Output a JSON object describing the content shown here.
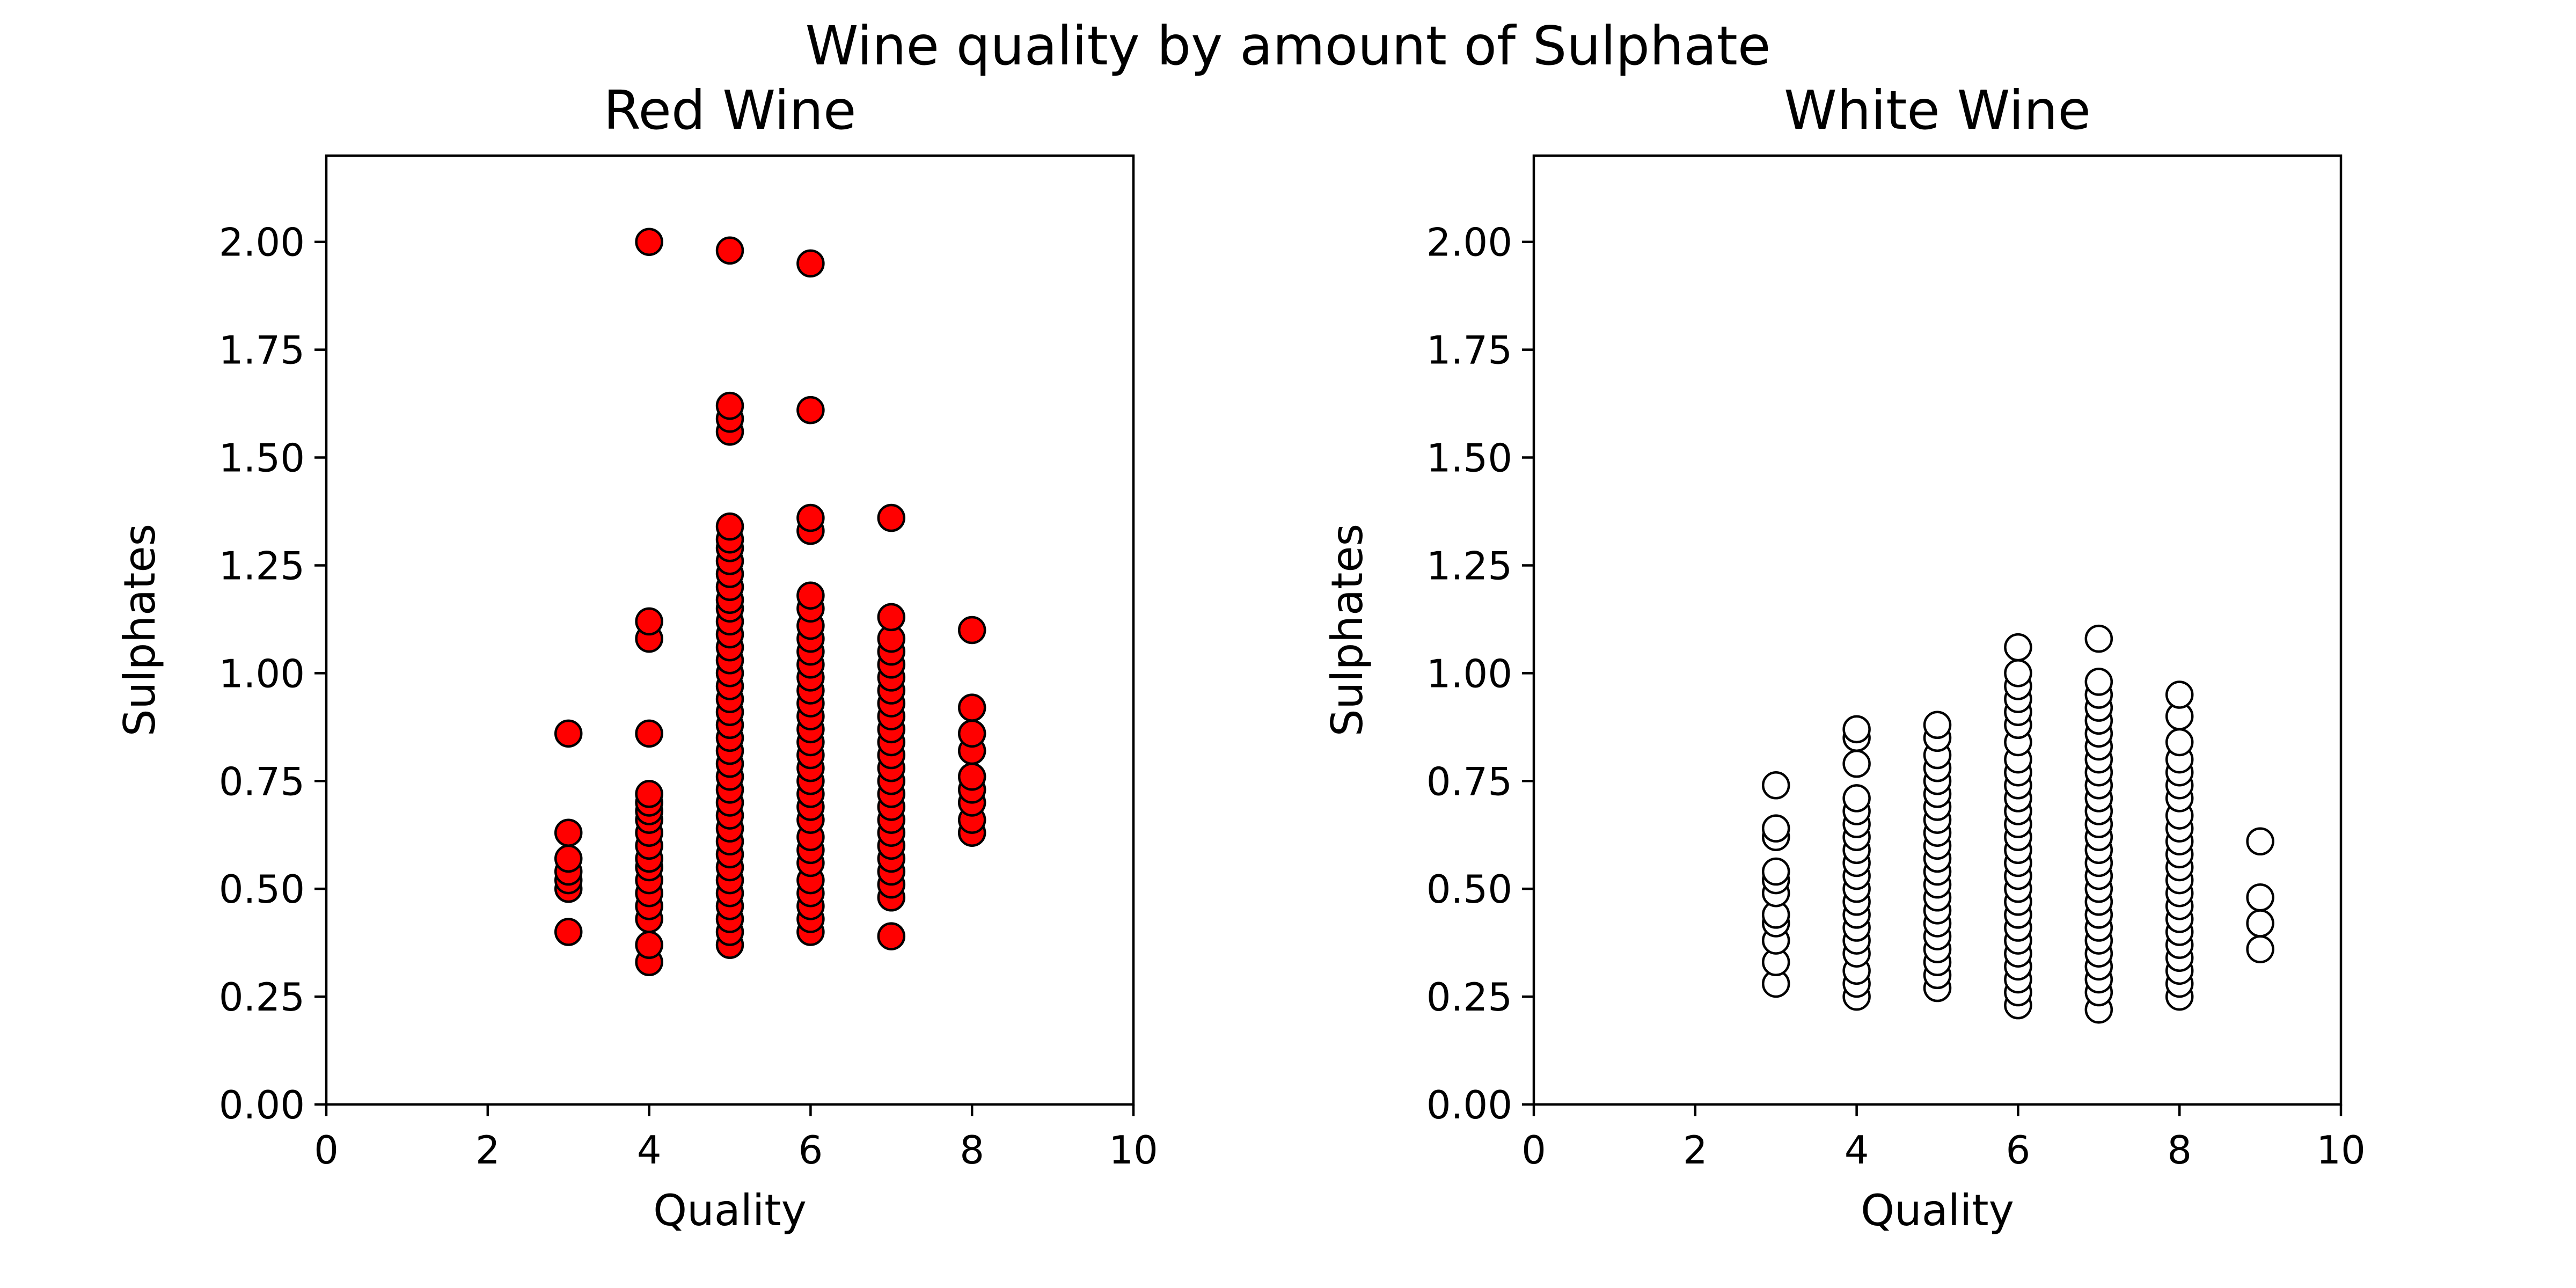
{
  "figure": {
    "suptitle": "Wine quality by amount of Sulphate"
  },
  "chart_data": [
    {
      "type": "scatter",
      "title": "Red Wine",
      "xlabel": "Quality",
      "ylabel": "Sulphates",
      "xlim": [
        0,
        10
      ],
      "ylim": [
        0,
        2.2
      ],
      "xticks": [
        0,
        2,
        4,
        6,
        8,
        10
      ],
      "xtick_labels": [
        "0",
        "2",
        "4",
        "6",
        "8",
        "10"
      ],
      "yticks": [
        0,
        0.25,
        0.5,
        0.75,
        1.0,
        1.25,
        1.5,
        1.75,
        2.0
      ],
      "ytick_labels": [
        "0.00",
        "0.25",
        "0.50",
        "0.75",
        "1.00",
        "1.25",
        "1.50",
        "1.75",
        "2.00"
      ],
      "marker_fill": "#ff0000",
      "marker_edge": "#000000",
      "grid": false,
      "points": [
        {
          "x": 3,
          "y": 0.4
        },
        {
          "x": 3,
          "y": 0.5
        },
        {
          "x": 3,
          "y": 0.52
        },
        {
          "x": 3,
          "y": 0.54
        },
        {
          "x": 3,
          "y": 0.57
        },
        {
          "x": 3,
          "y": 0.63
        },
        {
          "x": 3,
          "y": 0.86
        },
        {
          "x": 4,
          "y": 0.33
        },
        {
          "x": 4,
          "y": 0.37
        },
        {
          "x": 4,
          "y": 0.43
        },
        {
          "x": 4,
          "y": 0.46
        },
        {
          "x": 4,
          "y": 0.49
        },
        {
          "x": 4,
          "y": 0.52
        },
        {
          "x": 4,
          "y": 0.55
        },
        {
          "x": 4,
          "y": 0.57
        },
        {
          "x": 4,
          "y": 0.6
        },
        {
          "x": 4,
          "y": 0.63
        },
        {
          "x": 4,
          "y": 0.66
        },
        {
          "x": 4,
          "y": 0.68
        },
        {
          "x": 4,
          "y": 0.7
        },
        {
          "x": 4,
          "y": 0.72
        },
        {
          "x": 4,
          "y": 0.86
        },
        {
          "x": 4,
          "y": 1.08
        },
        {
          "x": 4,
          "y": 1.12
        },
        {
          "x": 4,
          "y": 2.0
        },
        {
          "x": 5,
          "y": 0.37
        },
        {
          "x": 5,
          "y": 0.4
        },
        {
          "x": 5,
          "y": 0.43
        },
        {
          "x": 5,
          "y": 0.46
        },
        {
          "x": 5,
          "y": 0.49
        },
        {
          "x": 5,
          "y": 0.52
        },
        {
          "x": 5,
          "y": 0.55
        },
        {
          "x": 5,
          "y": 0.58
        },
        {
          "x": 5,
          "y": 0.61
        },
        {
          "x": 5,
          "y": 0.64
        },
        {
          "x": 5,
          "y": 0.67
        },
        {
          "x": 5,
          "y": 0.7
        },
        {
          "x": 5,
          "y": 0.73
        },
        {
          "x": 5,
          "y": 0.76
        },
        {
          "x": 5,
          "y": 0.79
        },
        {
          "x": 5,
          "y": 0.82
        },
        {
          "x": 5,
          "y": 0.85
        },
        {
          "x": 5,
          "y": 0.88
        },
        {
          "x": 5,
          "y": 0.91
        },
        {
          "x": 5,
          "y": 0.94
        },
        {
          "x": 5,
          "y": 0.97
        },
        {
          "x": 5,
          "y": 1.0
        },
        {
          "x": 5,
          "y": 1.03
        },
        {
          "x": 5,
          "y": 1.06
        },
        {
          "x": 5,
          "y": 1.09
        },
        {
          "x": 5,
          "y": 1.12
        },
        {
          "x": 5,
          "y": 1.15
        },
        {
          "x": 5,
          "y": 1.17
        },
        {
          "x": 5,
          "y": 1.2
        },
        {
          "x": 5,
          "y": 1.23
        },
        {
          "x": 5,
          "y": 1.26
        },
        {
          "x": 5,
          "y": 1.29
        },
        {
          "x": 5,
          "y": 1.31
        },
        {
          "x": 5,
          "y": 1.34
        },
        {
          "x": 5,
          "y": 1.56
        },
        {
          "x": 5,
          "y": 1.59
        },
        {
          "x": 5,
          "y": 1.62
        },
        {
          "x": 5,
          "y": 1.98
        },
        {
          "x": 6,
          "y": 0.4
        },
        {
          "x": 6,
          "y": 0.43
        },
        {
          "x": 6,
          "y": 0.46
        },
        {
          "x": 6,
          "y": 0.49
        },
        {
          "x": 6,
          "y": 0.52
        },
        {
          "x": 6,
          "y": 0.56
        },
        {
          "x": 6,
          "y": 0.59
        },
        {
          "x": 6,
          "y": 0.62
        },
        {
          "x": 6,
          "y": 0.66
        },
        {
          "x": 6,
          "y": 0.69
        },
        {
          "x": 6,
          "y": 0.72
        },
        {
          "x": 6,
          "y": 0.75
        },
        {
          "x": 6,
          "y": 0.78
        },
        {
          "x": 6,
          "y": 0.81
        },
        {
          "x": 6,
          "y": 0.84
        },
        {
          "x": 6,
          "y": 0.87
        },
        {
          "x": 6,
          "y": 0.9
        },
        {
          "x": 6,
          "y": 0.93
        },
        {
          "x": 6,
          "y": 0.96
        },
        {
          "x": 6,
          "y": 0.99
        },
        {
          "x": 6,
          "y": 1.02
        },
        {
          "x": 6,
          "y": 1.05
        },
        {
          "x": 6,
          "y": 1.08
        },
        {
          "x": 6,
          "y": 1.11
        },
        {
          "x": 6,
          "y": 1.15
        },
        {
          "x": 6,
          "y": 1.18
        },
        {
          "x": 6,
          "y": 1.33
        },
        {
          "x": 6,
          "y": 1.36
        },
        {
          "x": 6,
          "y": 1.61
        },
        {
          "x": 6,
          "y": 1.95
        },
        {
          "x": 7,
          "y": 0.39
        },
        {
          "x": 7,
          "y": 0.48
        },
        {
          "x": 7,
          "y": 0.51
        },
        {
          "x": 7,
          "y": 0.54
        },
        {
          "x": 7,
          "y": 0.57
        },
        {
          "x": 7,
          "y": 0.6
        },
        {
          "x": 7,
          "y": 0.63
        },
        {
          "x": 7,
          "y": 0.66
        },
        {
          "x": 7,
          "y": 0.69
        },
        {
          "x": 7,
          "y": 0.72
        },
        {
          "x": 7,
          "y": 0.75
        },
        {
          "x": 7,
          "y": 0.78
        },
        {
          "x": 7,
          "y": 0.81
        },
        {
          "x": 7,
          "y": 0.84
        },
        {
          "x": 7,
          "y": 0.87
        },
        {
          "x": 7,
          "y": 0.9
        },
        {
          "x": 7,
          "y": 0.93
        },
        {
          "x": 7,
          "y": 0.96
        },
        {
          "x": 7,
          "y": 0.99
        },
        {
          "x": 7,
          "y": 1.02
        },
        {
          "x": 7,
          "y": 1.05
        },
        {
          "x": 7,
          "y": 1.08
        },
        {
          "x": 7,
          "y": 1.13
        },
        {
          "x": 7,
          "y": 1.36
        },
        {
          "x": 8,
          "y": 0.63
        },
        {
          "x": 8,
          "y": 0.66
        },
        {
          "x": 8,
          "y": 0.7
        },
        {
          "x": 8,
          "y": 0.73
        },
        {
          "x": 8,
          "y": 0.76
        },
        {
          "x": 8,
          "y": 0.82
        },
        {
          "x": 8,
          "y": 0.86
        },
        {
          "x": 8,
          "y": 0.92
        },
        {
          "x": 8,
          "y": 1.1
        }
      ]
    },
    {
      "type": "scatter",
      "title": "White Wine",
      "xlabel": "Quality",
      "ylabel": "Sulphates",
      "xlim": [
        0,
        10
      ],
      "ylim": [
        0,
        2.2
      ],
      "xticks": [
        0,
        2,
        4,
        6,
        8,
        10
      ],
      "xtick_labels": [
        "0",
        "2",
        "4",
        "6",
        "8",
        "10"
      ],
      "yticks": [
        0,
        0.25,
        0.5,
        0.75,
        1.0,
        1.25,
        1.5,
        1.75,
        2.0
      ],
      "ytick_labels": [
        "0.00",
        "0.25",
        "0.50",
        "0.75",
        "1.00",
        "1.25",
        "1.50",
        "1.75",
        "2.00"
      ],
      "marker_fill": "#ffffff",
      "marker_edge": "#000000",
      "grid": false,
      "points": [
        {
          "x": 3,
          "y": 0.28
        },
        {
          "x": 3,
          "y": 0.33
        },
        {
          "x": 3,
          "y": 0.38
        },
        {
          "x": 3,
          "y": 0.42
        },
        {
          "x": 3,
          "y": 0.44
        },
        {
          "x": 3,
          "y": 0.49
        },
        {
          "x": 3,
          "y": 0.52
        },
        {
          "x": 3,
          "y": 0.54
        },
        {
          "x": 3,
          "y": 0.62
        },
        {
          "x": 3,
          "y": 0.64
        },
        {
          "x": 3,
          "y": 0.74
        },
        {
          "x": 4,
          "y": 0.25
        },
        {
          "x": 4,
          "y": 0.28
        },
        {
          "x": 4,
          "y": 0.31
        },
        {
          "x": 4,
          "y": 0.35
        },
        {
          "x": 4,
          "y": 0.38
        },
        {
          "x": 4,
          "y": 0.41
        },
        {
          "x": 4,
          "y": 0.44
        },
        {
          "x": 4,
          "y": 0.47
        },
        {
          "x": 4,
          "y": 0.5
        },
        {
          "x": 4,
          "y": 0.53
        },
        {
          "x": 4,
          "y": 0.56
        },
        {
          "x": 4,
          "y": 0.59
        },
        {
          "x": 4,
          "y": 0.62
        },
        {
          "x": 4,
          "y": 0.65
        },
        {
          "x": 4,
          "y": 0.68
        },
        {
          "x": 4,
          "y": 0.71
        },
        {
          "x": 4,
          "y": 0.79
        },
        {
          "x": 4,
          "y": 0.85
        },
        {
          "x": 4,
          "y": 0.87
        },
        {
          "x": 5,
          "y": 0.27
        },
        {
          "x": 5,
          "y": 0.3
        },
        {
          "x": 5,
          "y": 0.33
        },
        {
          "x": 5,
          "y": 0.36
        },
        {
          "x": 5,
          "y": 0.39
        },
        {
          "x": 5,
          "y": 0.42
        },
        {
          "x": 5,
          "y": 0.45
        },
        {
          "x": 5,
          "y": 0.48
        },
        {
          "x": 5,
          "y": 0.51
        },
        {
          "x": 5,
          "y": 0.54
        },
        {
          "x": 5,
          "y": 0.57
        },
        {
          "x": 5,
          "y": 0.6
        },
        {
          "x": 5,
          "y": 0.63
        },
        {
          "x": 5,
          "y": 0.66
        },
        {
          "x": 5,
          "y": 0.69
        },
        {
          "x": 5,
          "y": 0.72
        },
        {
          "x": 5,
          "y": 0.75
        },
        {
          "x": 5,
          "y": 0.78
        },
        {
          "x": 5,
          "y": 0.81
        },
        {
          "x": 5,
          "y": 0.85
        },
        {
          "x": 5,
          "y": 0.88
        },
        {
          "x": 6,
          "y": 0.23
        },
        {
          "x": 6,
          "y": 0.26
        },
        {
          "x": 6,
          "y": 0.29
        },
        {
          "x": 6,
          "y": 0.32
        },
        {
          "x": 6,
          "y": 0.35
        },
        {
          "x": 6,
          "y": 0.38
        },
        {
          "x": 6,
          "y": 0.41
        },
        {
          "x": 6,
          "y": 0.44
        },
        {
          "x": 6,
          "y": 0.47
        },
        {
          "x": 6,
          "y": 0.5
        },
        {
          "x": 6,
          "y": 0.53
        },
        {
          "x": 6,
          "y": 0.56
        },
        {
          "x": 6,
          "y": 0.59
        },
        {
          "x": 6,
          "y": 0.62
        },
        {
          "x": 6,
          "y": 0.65
        },
        {
          "x": 6,
          "y": 0.68
        },
        {
          "x": 6,
          "y": 0.71
        },
        {
          "x": 6,
          "y": 0.74
        },
        {
          "x": 6,
          "y": 0.77
        },
        {
          "x": 6,
          "y": 0.8
        },
        {
          "x": 6,
          "y": 0.84
        },
        {
          "x": 6,
          "y": 0.88
        },
        {
          "x": 6,
          "y": 0.91
        },
        {
          "x": 6,
          "y": 0.94
        },
        {
          "x": 6,
          "y": 0.97
        },
        {
          "x": 6,
          "y": 1.0
        },
        {
          "x": 6,
          "y": 1.06
        },
        {
          "x": 7,
          "y": 0.22
        },
        {
          "x": 7,
          "y": 0.26
        },
        {
          "x": 7,
          "y": 0.29
        },
        {
          "x": 7,
          "y": 0.32
        },
        {
          "x": 7,
          "y": 0.35
        },
        {
          "x": 7,
          "y": 0.38
        },
        {
          "x": 7,
          "y": 0.41
        },
        {
          "x": 7,
          "y": 0.44
        },
        {
          "x": 7,
          "y": 0.47
        },
        {
          "x": 7,
          "y": 0.5
        },
        {
          "x": 7,
          "y": 0.53
        },
        {
          "x": 7,
          "y": 0.56
        },
        {
          "x": 7,
          "y": 0.59
        },
        {
          "x": 7,
          "y": 0.62
        },
        {
          "x": 7,
          "y": 0.65
        },
        {
          "x": 7,
          "y": 0.68
        },
        {
          "x": 7,
          "y": 0.71
        },
        {
          "x": 7,
          "y": 0.74
        },
        {
          "x": 7,
          "y": 0.77
        },
        {
          "x": 7,
          "y": 0.8
        },
        {
          "x": 7,
          "y": 0.83
        },
        {
          "x": 7,
          "y": 0.86
        },
        {
          "x": 7,
          "y": 0.89
        },
        {
          "x": 7,
          "y": 0.92
        },
        {
          "x": 7,
          "y": 0.95
        },
        {
          "x": 7,
          "y": 0.98
        },
        {
          "x": 7,
          "y": 1.08
        },
        {
          "x": 8,
          "y": 0.25
        },
        {
          "x": 8,
          "y": 0.28
        },
        {
          "x": 8,
          "y": 0.31
        },
        {
          "x": 8,
          "y": 0.34
        },
        {
          "x": 8,
          "y": 0.37
        },
        {
          "x": 8,
          "y": 0.4
        },
        {
          "x": 8,
          "y": 0.43
        },
        {
          "x": 8,
          "y": 0.46
        },
        {
          "x": 8,
          "y": 0.49
        },
        {
          "x": 8,
          "y": 0.52
        },
        {
          "x": 8,
          "y": 0.55
        },
        {
          "x": 8,
          "y": 0.58
        },
        {
          "x": 8,
          "y": 0.61
        },
        {
          "x": 8,
          "y": 0.64
        },
        {
          "x": 8,
          "y": 0.67
        },
        {
          "x": 8,
          "y": 0.71
        },
        {
          "x": 8,
          "y": 0.74
        },
        {
          "x": 8,
          "y": 0.77
        },
        {
          "x": 8,
          "y": 0.8
        },
        {
          "x": 8,
          "y": 0.84
        },
        {
          "x": 8,
          "y": 0.9
        },
        {
          "x": 8,
          "y": 0.95
        },
        {
          "x": 9,
          "y": 0.36
        },
        {
          "x": 9,
          "y": 0.42
        },
        {
          "x": 9,
          "y": 0.48
        },
        {
          "x": 9,
          "y": 0.61
        }
      ]
    }
  ]
}
